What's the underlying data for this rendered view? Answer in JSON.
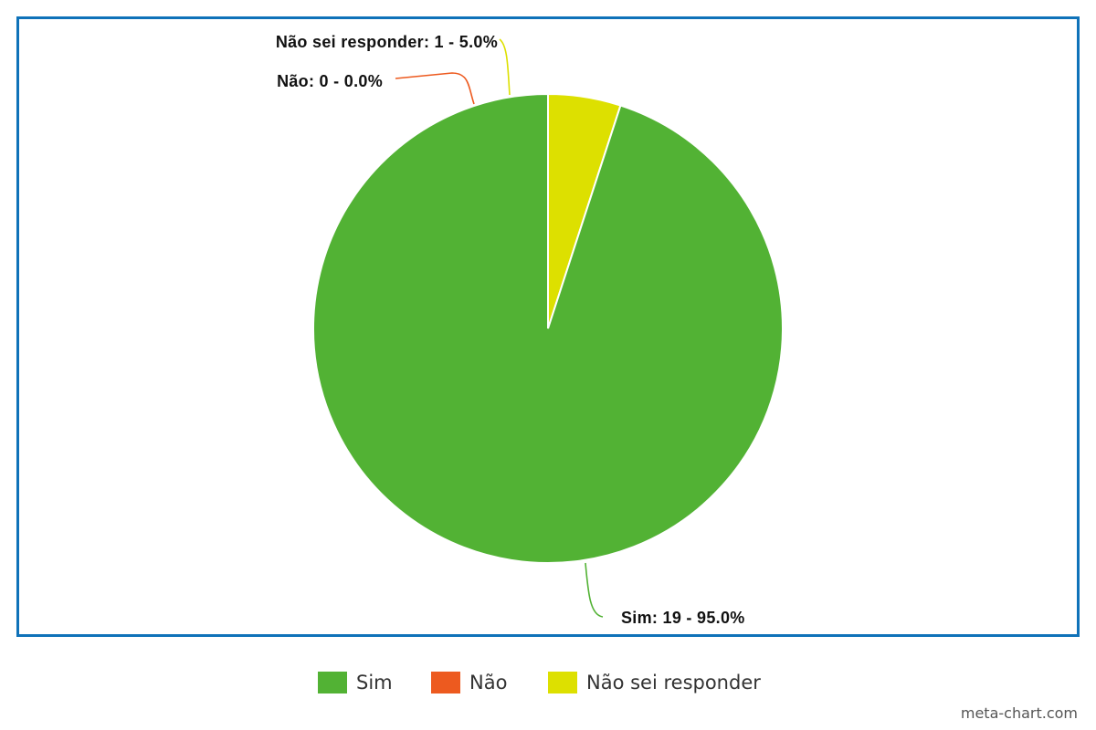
{
  "chart_data": {
    "type": "pie",
    "title": "",
    "slices": [
      {
        "name": "Sim",
        "value": 19,
        "percent": 95.0,
        "color": "#52b234",
        "label": "Sim: 19 - 95.0%"
      },
      {
        "name": "Não",
        "value": 0,
        "percent": 0.0,
        "color": "#ed5a1f",
        "label": "Não: 0 - 0.0%"
      },
      {
        "name": "Não sei responder",
        "value": 1,
        "percent": 5.0,
        "color": "#dde000",
        "label": "Não sei responder: 1 - 5.0%"
      }
    ],
    "legend_position": "bottom-center",
    "frame_color": "#0f72b9"
  },
  "watermark": "meta-chart.com"
}
